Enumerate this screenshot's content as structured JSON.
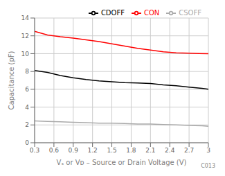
{
  "chart_data": {
    "type": "line",
    "title": "",
    "xlabel": "Vₛ or Vᴅ – Source or Drain Voltage (V)",
    "ylabel": "Capacitance (pF)",
    "xlim": [
      0.3,
      3.0
    ],
    "ylim": [
      0,
      14
    ],
    "xticks": [
      0.3,
      0.6,
      0.9,
      1.2,
      1.5,
      1.8,
      2.1,
      2.4,
      2.7,
      3.0
    ],
    "yticks": [
      0,
      2,
      4,
      6,
      8,
      10,
      12,
      14
    ],
    "grid": true,
    "legend": "upper right",
    "annotations": [
      "C013"
    ],
    "series": [
      {
        "name": "CON",
        "color": "#ff0000",
        "x": [
          0.3,
          0.5,
          0.6,
          0.7,
          0.9,
          1.1,
          1.3,
          1.5,
          1.7,
          1.9,
          2.1,
          2.3,
          2.5,
          2.7,
          2.85,
          3.0
        ],
        "values": [
          12.5,
          12.1,
          12.0,
          11.9,
          11.75,
          11.55,
          11.35,
          11.1,
          10.85,
          10.6,
          10.4,
          10.2,
          10.1,
          10.05,
          10.02,
          10.0
        ]
      },
      {
        "name": "CSOFF",
        "color": "#aaaaaa",
        "x": [
          0.3,
          0.5,
          0.7,
          0.9,
          1.1,
          1.3,
          1.5,
          1.7,
          1.9,
          2.1,
          2.3,
          2.5,
          2.7,
          2.9,
          3.0
        ],
        "values": [
          2.45,
          2.4,
          2.35,
          2.3,
          2.25,
          2.2,
          2.2,
          2.15,
          2.1,
          2.1,
          2.05,
          2.0,
          1.95,
          1.9,
          1.85
        ]
      },
      {
        "name": "CDOFF",
        "color": "#000000",
        "x": [
          0.3,
          0.5,
          0.7,
          0.9,
          1.1,
          1.3,
          1.5,
          1.7,
          1.9,
          2.1,
          2.3,
          2.5,
          2.7,
          2.9,
          3.0
        ],
        "values": [
          8.1,
          7.9,
          7.55,
          7.3,
          7.1,
          6.95,
          6.85,
          6.75,
          6.7,
          6.65,
          6.5,
          6.4,
          6.25,
          6.1,
          6.0
        ]
      }
    ]
  }
}
